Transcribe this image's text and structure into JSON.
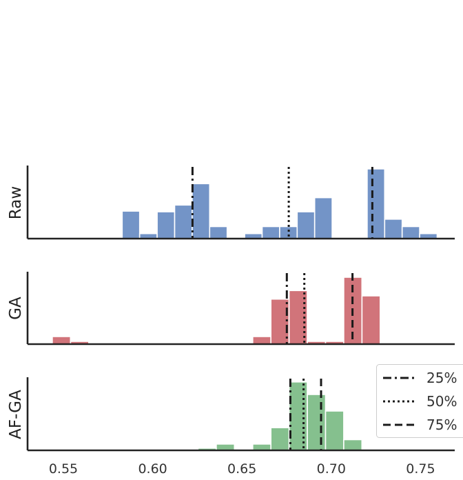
{
  "chart_data": {
    "type": "histogram",
    "x_ticks": [
      "0.55",
      "0.60",
      "0.65",
      "0.70",
      "0.75"
    ],
    "x_tick_values": [
      0.55,
      0.6,
      0.65,
      0.7,
      0.75
    ],
    "xlim": [
      0.53,
      0.77
    ],
    "legend": {
      "placement": "bottom-right",
      "entries": [
        {
          "label": "25%",
          "style": "dashdot"
        },
        {
          "label": "50%",
          "style": "dotted"
        },
        {
          "label": "75%",
          "style": "dashed"
        }
      ]
    },
    "panels": [
      {
        "name": "Raw",
        "ylabel": "Raw",
        "color": "#7394c7",
        "bin_width": 0.0098,
        "ymax": 1.0,
        "bins": [
          {
            "x": 0.5829,
            "h": 0.376
          },
          {
            "x": 0.5927,
            "h": 0.069
          },
          {
            "x": 0.6025,
            "h": 0.367
          },
          {
            "x": 0.6123,
            "h": 0.459
          },
          {
            "x": 0.6221,
            "h": 0.752
          },
          {
            "x": 0.6319,
            "h": 0.165
          },
          {
            "x": 0.6515,
            "h": 0.069
          },
          {
            "x": 0.6613,
            "h": 0.165
          },
          {
            "x": 0.6711,
            "h": 0.165
          },
          {
            "x": 0.6809,
            "h": 0.367
          },
          {
            "x": 0.6907,
            "h": 0.56
          },
          {
            "x": 0.7201,
            "h": 0.954
          },
          {
            "x": 0.7299,
            "h": 0.266
          },
          {
            "x": 0.7397,
            "h": 0.165
          },
          {
            "x": 0.7495,
            "h": 0.069
          }
        ],
        "quantiles": {
          "25": 0.6223,
          "50": 0.6762,
          "75": 0.723
        }
      },
      {
        "name": "GA",
        "ylabel": "GA",
        "color": "#d1747a",
        "bin_width": 0.0102,
        "ymax": 1.0,
        "bins": [
          {
            "x": 0.5438,
            "h": 0.105
          },
          {
            "x": 0.554,
            "h": 0.038
          },
          {
            "x": 0.656,
            "h": 0.105
          },
          {
            "x": 0.6662,
            "h": 0.622
          },
          {
            "x": 0.6764,
            "h": 0.74
          },
          {
            "x": 0.6866,
            "h": 0.038
          },
          {
            "x": 0.6968,
            "h": 0.038
          },
          {
            "x": 0.707,
            "h": 0.924
          },
          {
            "x": 0.7172,
            "h": 0.667
          }
        ],
        "quantiles": {
          "25": 0.6751,
          "50": 0.6849,
          "75": 0.7119
        }
      },
      {
        "name": "AF-GA",
        "ylabel": "AF-GA",
        "color": "#85c08e",
        "bin_width": 0.0102,
        "ymax": 1.0,
        "bins": [
          {
            "x": 0.6254,
            "h": 0.03
          },
          {
            "x": 0.6356,
            "h": 0.086
          },
          {
            "x": 0.656,
            "h": 0.086
          },
          {
            "x": 0.6662,
            "h": 0.31
          },
          {
            "x": 0.6764,
            "h": 0.936
          },
          {
            "x": 0.6866,
            "h": 0.764
          },
          {
            "x": 0.6968,
            "h": 0.538
          },
          {
            "x": 0.707,
            "h": 0.146
          }
        ],
        "quantiles": {
          "25": 0.6771,
          "50": 0.6845,
          "75": 0.6943
        }
      }
    ]
  }
}
